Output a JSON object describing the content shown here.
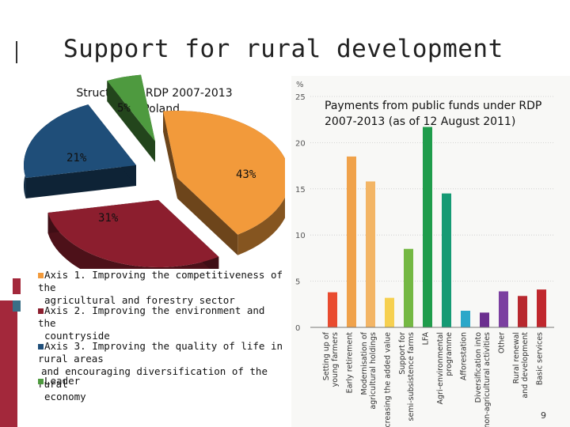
{
  "slide": {
    "title": "Support for rural development",
    "page_number": "9"
  },
  "chart_data": [
    {
      "type": "pie",
      "title": "Structure of RDP 2007-2013 in Poland",
      "title_line1": "Structure of RDP 2007-2013",
      "title_line2": "in Poland",
      "slices": [
        {
          "label": "Axis 1. Improving the competitiveness of the agricultural and forestry sector",
          "value": 43,
          "value_label": "43%",
          "color": "#f29a3b"
        },
        {
          "label": "Axis 2. Improving the environment and the countryside",
          "value": 31,
          "value_label": "31%",
          "color": "#8c1e2e"
        },
        {
          "label": "Axis 3. Improving the quality of life in rural areas and encouraging diversification of the rural economy",
          "value": 21,
          "value_label": "21%",
          "color": "#1f4e79"
        },
        {
          "label": "Leader",
          "value": 5,
          "value_label": "5%",
          "color": "#4e9a3f"
        }
      ],
      "legend": [
        {
          "line1": "Axis 1. Improving the competitiveness of the",
          "line2": "agricultural and forestry sector",
          "color": "#f29a3b"
        },
        {
          "line1": "Axis 2. Improving the environment and the",
          "line2": "countryside",
          "color": "#8c1e2e"
        },
        {
          "line1": "Axis 3. Improving the quality of life in rural areas",
          "line2": "and encouraging diversification of the rural",
          "line3": "economy",
          "color": "#1f4e79"
        },
        {
          "line1": "Leader",
          "color": "#4e9a3f"
        }
      ]
    },
    {
      "type": "bar",
      "title": "Payments from public funds under RDP 2007-2013 (as of 12 August 2011)",
      "title_line1": "Payments from public funds under RDP",
      "title_line2": "2007-2013 (as of 12 August 2011)",
      "ylabel": "%",
      "ylim": [
        0,
        25
      ],
      "yticks": [
        0,
        5,
        10,
        15,
        20,
        25
      ],
      "grid": true,
      "categories": [
        [
          "Setting up of",
          "young farmers"
        ],
        [
          "Early retirement"
        ],
        [
          "Modernisation of",
          "agricultural holdings"
        ],
        [
          "Increasing the added value"
        ],
        [
          "Support for",
          "semi-subsistence farms"
        ],
        [
          "LFA"
        ],
        [
          "Agri-environmental",
          "programme"
        ],
        [
          "Afforestation"
        ],
        [
          "Diversification into",
          "non-agricultural activities"
        ],
        [
          "Other"
        ],
        [
          "Rural renewal",
          "and development"
        ],
        [
          "Basic services"
        ]
      ],
      "values": [
        3.8,
        18.5,
        15.8,
        3.2,
        8.5,
        21.7,
        14.5,
        1.8,
        1.6,
        3.9,
        3.4,
        4.1
      ],
      "colors": [
        "#e94b2f",
        "#f0a24a",
        "#f3b565",
        "#f6d050",
        "#74b843",
        "#1f9c4b",
        "#159a74",
        "#2aa7c9",
        "#6b2f8f",
        "#7b3fa0",
        "#b8282e",
        "#c0272d"
      ]
    }
  ]
}
